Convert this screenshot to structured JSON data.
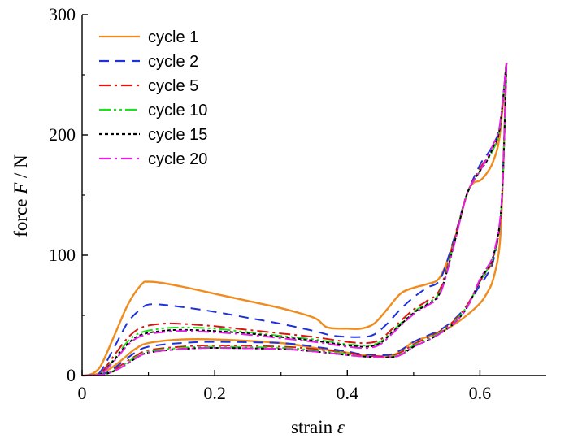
{
  "chart_data": {
    "type": "line",
    "xlabel_text": "strain ",
    "xlabel_var": "ε",
    "ylabel_text": "force ",
    "ylabel_var": "F",
    "ylabel_unit": " / N",
    "xlim": [
      0,
      0.7
    ],
    "ylim": [
      0,
      300
    ],
    "x_ticks": [
      0,
      0.2,
      0.4,
      0.6
    ],
    "x_tick_labels": [
      "0",
      "0.2",
      "0.4",
      "0.6"
    ],
    "y_ticks": [
      0,
      100,
      200,
      300
    ],
    "y_tick_labels": [
      "0",
      "100",
      "200",
      "300"
    ],
    "grid": false,
    "legend_position": "top-left",
    "series": [
      {
        "name": "cycle 1",
        "color": "#f08c1e",
        "dash": "solid",
        "loading": [
          [
            0,
            0
          ],
          [
            0.01,
            0.5
          ],
          [
            0.02,
            3
          ],
          [
            0.03,
            10
          ],
          [
            0.05,
            35
          ],
          [
            0.07,
            60
          ],
          [
            0.09,
            76
          ],
          [
            0.1,
            78
          ],
          [
            0.12,
            77
          ],
          [
            0.15,
            74
          ],
          [
            0.2,
            68
          ],
          [
            0.25,
            62
          ],
          [
            0.3,
            56
          ],
          [
            0.35,
            48
          ],
          [
            0.37,
            40
          ],
          [
            0.4,
            39
          ],
          [
            0.42,
            39
          ],
          [
            0.44,
            43
          ],
          [
            0.46,
            55
          ],
          [
            0.48,
            68
          ],
          [
            0.5,
            73
          ],
          [
            0.52,
            76
          ],
          [
            0.54,
            82
          ],
          [
            0.56,
            110
          ],
          [
            0.58,
            150
          ],
          [
            0.59,
            160
          ],
          [
            0.6,
            162
          ],
          [
            0.61,
            168
          ],
          [
            0.62,
            178
          ],
          [
            0.63,
            200
          ],
          [
            0.64,
            260
          ]
        ],
        "unloading": [
          [
            0.64,
            260
          ],
          [
            0.635,
            170
          ],
          [
            0.63,
            110
          ],
          [
            0.62,
            80
          ],
          [
            0.61,
            68
          ],
          [
            0.6,
            60
          ],
          [
            0.58,
            50
          ],
          [
            0.56,
            42
          ],
          [
            0.54,
            36
          ],
          [
            0.5,
            28
          ],
          [
            0.48,
            20
          ],
          [
            0.46,
            16
          ],
          [
            0.42,
            17
          ],
          [
            0.4,
            19
          ],
          [
            0.35,
            23
          ],
          [
            0.3,
            27
          ],
          [
            0.2,
            30
          ],
          [
            0.15,
            30
          ],
          [
            0.1,
            27
          ],
          [
            0.08,
            22
          ],
          [
            0.06,
            13
          ],
          [
            0.04,
            5
          ],
          [
            0.02,
            0.8
          ],
          [
            0,
            0
          ]
        ]
      },
      {
        "name": "cycle 2",
        "color": "#1e32dc",
        "dash": "12,8",
        "loading": [
          [
            0,
            0
          ],
          [
            0.02,
            0.5
          ],
          [
            0.03,
            5
          ],
          [
            0.05,
            25
          ],
          [
            0.07,
            45
          ],
          [
            0.09,
            56
          ],
          [
            0.1,
            59
          ],
          [
            0.12,
            59
          ],
          [
            0.15,
            57
          ],
          [
            0.2,
            53
          ],
          [
            0.25,
            48
          ],
          [
            0.3,
            43
          ],
          [
            0.35,
            37
          ],
          [
            0.38,
            33
          ],
          [
            0.42,
            32
          ],
          [
            0.44,
            34
          ],
          [
            0.46,
            43
          ],
          [
            0.48,
            55
          ],
          [
            0.5,
            65
          ],
          [
            0.52,
            73
          ],
          [
            0.54,
            80
          ],
          [
            0.56,
            112
          ],
          [
            0.58,
            150
          ],
          [
            0.6,
            175
          ],
          [
            0.61,
            183
          ],
          [
            0.62,
            192
          ],
          [
            0.63,
            208
          ],
          [
            0.64,
            260
          ]
        ],
        "unloading": [
          [
            0.64,
            260
          ],
          [
            0.635,
            170
          ],
          [
            0.63,
            125
          ],
          [
            0.62,
            95
          ],
          [
            0.61,
            83
          ],
          [
            0.6,
            75
          ],
          [
            0.58,
            58
          ],
          [
            0.56,
            46
          ],
          [
            0.54,
            38
          ],
          [
            0.52,
            33
          ],
          [
            0.5,
            28
          ],
          [
            0.48,
            21
          ],
          [
            0.46,
            17
          ],
          [
            0.42,
            18
          ],
          [
            0.4,
            20
          ],
          [
            0.35,
            24
          ],
          [
            0.3,
            27
          ],
          [
            0.2,
            28
          ],
          [
            0.15,
            27
          ],
          [
            0.1,
            24
          ],
          [
            0.08,
            19
          ],
          [
            0.06,
            11
          ],
          [
            0.04,
            3
          ],
          [
            0.02,
            0.5
          ],
          [
            0,
            0
          ]
        ]
      },
      {
        "name": "cycle 5",
        "color": "#dc1414",
        "dash": "14,5,3,5",
        "loading": [
          [
            0,
            0
          ],
          [
            0.02,
            0.3
          ],
          [
            0.03,
            3
          ],
          [
            0.05,
            18
          ],
          [
            0.07,
            32
          ],
          [
            0.09,
            40
          ],
          [
            0.12,
            43
          ],
          [
            0.15,
            43
          ],
          [
            0.2,
            41
          ],
          [
            0.25,
            38
          ],
          [
            0.3,
            35
          ],
          [
            0.35,
            32
          ],
          [
            0.4,
            28
          ],
          [
            0.43,
            27
          ],
          [
            0.45,
            30
          ],
          [
            0.47,
            40
          ],
          [
            0.5,
            55
          ],
          [
            0.52,
            62
          ],
          [
            0.54,
            72
          ],
          [
            0.56,
            110
          ],
          [
            0.58,
            150
          ],
          [
            0.6,
            172
          ],
          [
            0.61,
            180
          ],
          [
            0.62,
            188
          ],
          [
            0.63,
            205
          ],
          [
            0.64,
            260
          ]
        ],
        "unloading": [
          [
            0.64,
            260
          ],
          [
            0.635,
            170
          ],
          [
            0.63,
            125
          ],
          [
            0.62,
            97
          ],
          [
            0.61,
            86
          ],
          [
            0.6,
            78
          ],
          [
            0.58,
            58
          ],
          [
            0.56,
            45
          ],
          [
            0.54,
            37
          ],
          [
            0.52,
            31
          ],
          [
            0.5,
            26
          ],
          [
            0.48,
            19
          ],
          [
            0.46,
            16
          ],
          [
            0.42,
            17
          ],
          [
            0.4,
            19
          ],
          [
            0.35,
            22
          ],
          [
            0.3,
            24
          ],
          [
            0.2,
            25
          ],
          [
            0.15,
            24
          ],
          [
            0.1,
            21
          ],
          [
            0.08,
            16
          ],
          [
            0.06,
            9
          ],
          [
            0.04,
            2
          ],
          [
            0.02,
            0.3
          ],
          [
            0,
            0
          ]
        ]
      },
      {
        "name": "cycle 10",
        "color": "#22dd22",
        "dash": "14,4,3,4,3,4",
        "loading": [
          [
            0,
            0
          ],
          [
            0.02,
            0.3
          ],
          [
            0.03,
            2
          ],
          [
            0.05,
            15
          ],
          [
            0.07,
            29
          ],
          [
            0.09,
            36
          ],
          [
            0.12,
            39
          ],
          [
            0.15,
            40
          ],
          [
            0.2,
            39
          ],
          [
            0.25,
            36
          ],
          [
            0.3,
            33
          ],
          [
            0.35,
            30
          ],
          [
            0.4,
            26
          ],
          [
            0.43,
            25
          ],
          [
            0.45,
            28
          ],
          [
            0.47,
            38
          ],
          [
            0.5,
            53
          ],
          [
            0.52,
            60
          ],
          [
            0.54,
            70
          ],
          [
            0.56,
            108
          ],
          [
            0.58,
            150
          ],
          [
            0.6,
            170
          ],
          [
            0.61,
            178
          ],
          [
            0.62,
            188
          ],
          [
            0.63,
            205
          ],
          [
            0.64,
            260
          ]
        ],
        "unloading": [
          [
            0.64,
            260
          ],
          [
            0.635,
            170
          ],
          [
            0.63,
            126
          ],
          [
            0.62,
            98
          ],
          [
            0.61,
            87
          ],
          [
            0.6,
            78
          ],
          [
            0.58,
            57
          ],
          [
            0.56,
            44
          ],
          [
            0.54,
            36
          ],
          [
            0.52,
            30
          ],
          [
            0.5,
            25
          ],
          [
            0.48,
            18
          ],
          [
            0.46,
            15
          ],
          [
            0.42,
            16
          ],
          [
            0.4,
            18
          ],
          [
            0.35,
            21
          ],
          [
            0.3,
            23
          ],
          [
            0.2,
            24
          ],
          [
            0.15,
            23
          ],
          [
            0.1,
            20
          ],
          [
            0.08,
            15
          ],
          [
            0.06,
            8
          ],
          [
            0.04,
            2
          ],
          [
            0.02,
            0.3
          ],
          [
            0,
            0
          ]
        ]
      },
      {
        "name": "cycle 15",
        "color": "#000000",
        "dash": "4,3",
        "loading": [
          [
            0,
            0
          ],
          [
            0.02,
            0.3
          ],
          [
            0.03,
            2
          ],
          [
            0.05,
            14
          ],
          [
            0.07,
            27
          ],
          [
            0.09,
            34
          ],
          [
            0.12,
            37
          ],
          [
            0.15,
            38
          ],
          [
            0.2,
            37
          ],
          [
            0.25,
            35
          ],
          [
            0.3,
            32
          ],
          [
            0.35,
            29
          ],
          [
            0.4,
            25
          ],
          [
            0.43,
            24
          ],
          [
            0.45,
            27
          ],
          [
            0.47,
            37
          ],
          [
            0.5,
            52
          ],
          [
            0.52,
            59
          ],
          [
            0.54,
            69
          ],
          [
            0.56,
            107
          ],
          [
            0.58,
            150
          ],
          [
            0.6,
            170
          ],
          [
            0.61,
            178
          ],
          [
            0.62,
            190
          ],
          [
            0.63,
            206
          ],
          [
            0.64,
            260
          ]
        ],
        "unloading": [
          [
            0.64,
            260
          ],
          [
            0.635,
            170
          ],
          [
            0.63,
            127
          ],
          [
            0.62,
            99
          ],
          [
            0.61,
            88
          ],
          [
            0.6,
            79
          ],
          [
            0.58,
            56
          ],
          [
            0.56,
            43
          ],
          [
            0.54,
            35
          ],
          [
            0.52,
            29
          ],
          [
            0.5,
            24
          ],
          [
            0.48,
            17
          ],
          [
            0.46,
            15
          ],
          [
            0.42,
            16
          ],
          [
            0.4,
            17
          ],
          [
            0.35,
            20
          ],
          [
            0.3,
            22
          ],
          [
            0.2,
            23
          ],
          [
            0.15,
            22
          ],
          [
            0.1,
            19
          ],
          [
            0.08,
            14
          ],
          [
            0.06,
            7
          ],
          [
            0.04,
            2
          ],
          [
            0.02,
            0.3
          ],
          [
            0,
            0
          ]
        ]
      },
      {
        "name": "cycle 20",
        "color": "#e61ee6",
        "dash": "14,5,3,5",
        "loading": [
          [
            0,
            0
          ],
          [
            0.02,
            0.3
          ],
          [
            0.03,
            2
          ],
          [
            0.05,
            13
          ],
          [
            0.07,
            26
          ],
          [
            0.09,
            33
          ],
          [
            0.12,
            36
          ],
          [
            0.15,
            37
          ],
          [
            0.2,
            36
          ],
          [
            0.25,
            34
          ],
          [
            0.3,
            31
          ],
          [
            0.35,
            28
          ],
          [
            0.4,
            24
          ],
          [
            0.43,
            23
          ],
          [
            0.45,
            26
          ],
          [
            0.47,
            36
          ],
          [
            0.5,
            51
          ],
          [
            0.52,
            58
          ],
          [
            0.54,
            68
          ],
          [
            0.56,
            106
          ],
          [
            0.58,
            150
          ],
          [
            0.6,
            170
          ],
          [
            0.61,
            180
          ],
          [
            0.62,
            192
          ],
          [
            0.63,
            208
          ],
          [
            0.64,
            260
          ]
        ],
        "unloading": [
          [
            0.64,
            260
          ],
          [
            0.635,
            170
          ],
          [
            0.63,
            128
          ],
          [
            0.62,
            100
          ],
          [
            0.61,
            89
          ],
          [
            0.6,
            80
          ],
          [
            0.58,
            56
          ],
          [
            0.56,
            43
          ],
          [
            0.54,
            35
          ],
          [
            0.52,
            29
          ],
          [
            0.5,
            24
          ],
          [
            0.48,
            17
          ],
          [
            0.46,
            15
          ],
          [
            0.42,
            16
          ],
          [
            0.4,
            17
          ],
          [
            0.35,
            20
          ],
          [
            0.3,
            22
          ],
          [
            0.2,
            23
          ],
          [
            0.15,
            22
          ],
          [
            0.1,
            19
          ],
          [
            0.08,
            14
          ],
          [
            0.06,
            7
          ],
          [
            0.04,
            2
          ],
          [
            0.02,
            0.3
          ],
          [
            0,
            0
          ]
        ]
      }
    ]
  }
}
